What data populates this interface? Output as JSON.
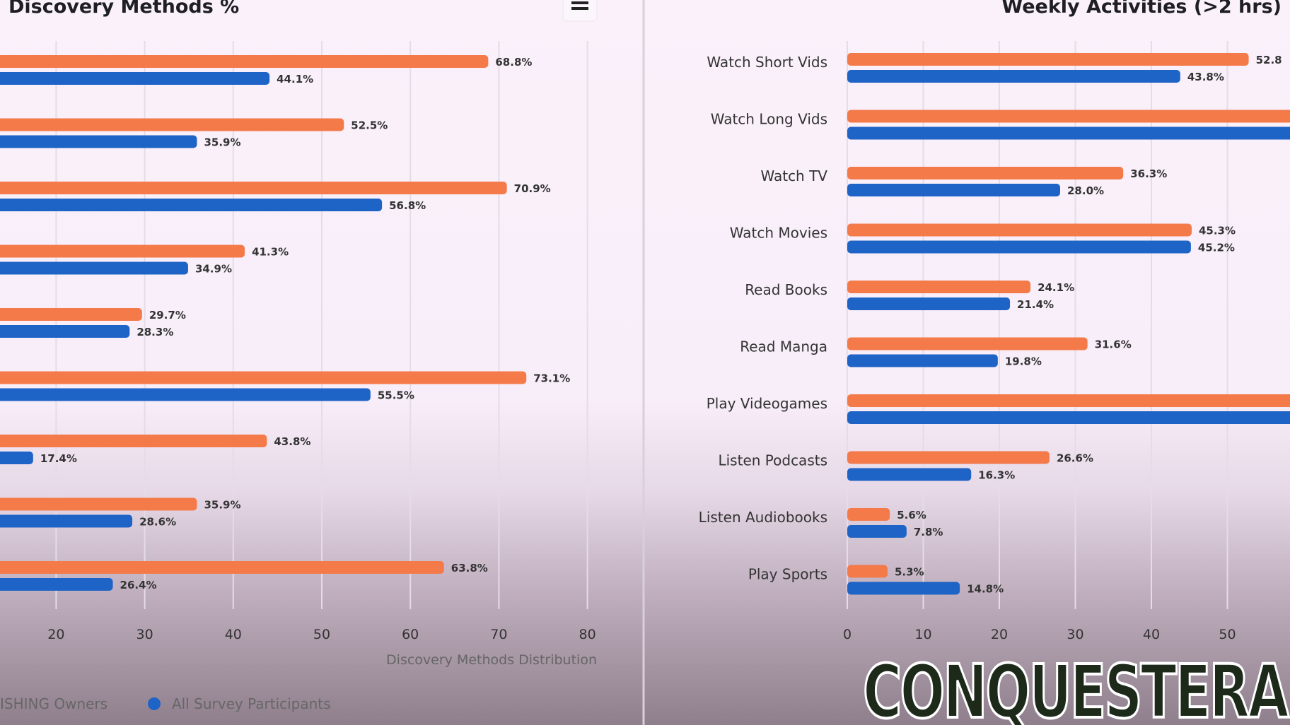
{
  "colors": {
    "owners": "#f47a4a",
    "participants": "#1e63c6",
    "grid": "#e4dce6"
  },
  "legend": {
    "owners_label": "ISHING Owners",
    "participants_label": "All Survey Participants"
  },
  "menu_icon": "hamburger-menu-icon",
  "logo_text": "CONQUESTERA",
  "chart_data": [
    {
      "type": "bar",
      "orientation": "horizontal",
      "title": "Discovery Methods %",
      "xlabel": "Discovery Methods Distribution",
      "xticks": [
        20,
        30,
        40,
        50,
        60,
        70,
        80
      ],
      "grid": true,
      "legend": "bottom",
      "series": [
        {
          "name": "ISHING Owners",
          "values": [
            68.8,
            52.5,
            70.9,
            41.3,
            29.7,
            73.1,
            43.8,
            35.9,
            63.8
          ],
          "labels": [
            "68.8%",
            "52.5%",
            "70.9%",
            "41.3%",
            "29.7%",
            "73.1%",
            "43.8%",
            "35.9%",
            "63.8%"
          ]
        },
        {
          "name": "All Survey Participants",
          "values": [
            44.1,
            35.9,
            56.8,
            34.9,
            28.3,
            55.5,
            17.4,
            28.6,
            26.4
          ],
          "labels": [
            "44.1%",
            "35.9%",
            "56.8%",
            "34.9%",
            "28.3%",
            "55.5%",
            "17.4%",
            "28.6%",
            "26.4%"
          ]
        }
      ]
    },
    {
      "type": "bar",
      "orientation": "horizontal",
      "title": "Weekly Activities (>2 hrs)",
      "categories": [
        "Watch Short Vids",
        "Watch Long Vids",
        "Watch TV",
        "Watch Movies",
        "Read Books",
        "Read Manga",
        "Play Videogames",
        "Listen Podcasts",
        "Listen Audiobooks",
        "Play Sports"
      ],
      "xticks": [
        0,
        10,
        20,
        30,
        40,
        50
      ],
      "grid": true,
      "series": [
        {
          "name": "ISHING Owners",
          "values": [
            52.8,
            null,
            36.3,
            45.3,
            24.1,
            31.6,
            null,
            26.6,
            5.6,
            5.3
          ],
          "labels": [
            "52.8",
            "",
            "36.3%",
            "45.3%",
            "24.1%",
            "31.6%",
            "",
            "26.6%",
            "5.6%",
            "5.3%"
          ]
        },
        {
          "name": "All Survey Participants",
          "values": [
            43.8,
            null,
            28.0,
            45.2,
            21.4,
            19.8,
            null,
            16.3,
            7.8,
            14.8
          ],
          "labels": [
            "43.8%",
            "",
            "28.0%",
            "45.2%",
            "21.4%",
            "19.8%",
            "",
            "16.3%",
            "7.8%",
            "14.8%"
          ]
        }
      ]
    }
  ]
}
